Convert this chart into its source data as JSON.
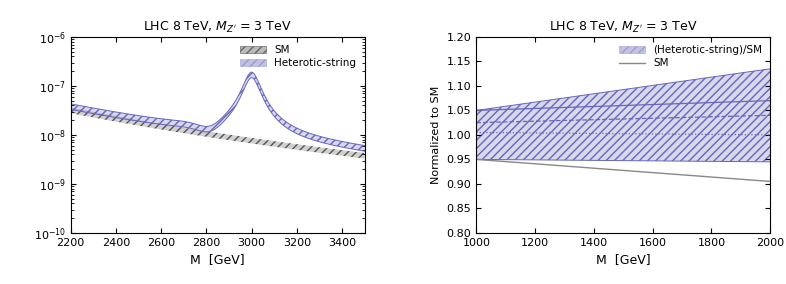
{
  "title": "LHC 8 TeV, $M_{Z^{\\prime}}$ = 3 TeV",
  "left": {
    "xlim": [
      2200,
      3500
    ],
    "xlabel": "M  [GeV]",
    "sm_color": "#555555",
    "hs_color": "#6666bb",
    "legend": [
      "SM",
      "Heterotic-string"
    ]
  },
  "right": {
    "xlim": [
      1000,
      2000
    ],
    "ylim": [
      0.8,
      1.2
    ],
    "xlabel": "M  [GeV]",
    "ylabel": "Normalized to SM",
    "hs_color": "#6666bb",
    "sm_color": "#888888",
    "legend": [
      "(Heterotic-string)/SM",
      "SM"
    ]
  }
}
